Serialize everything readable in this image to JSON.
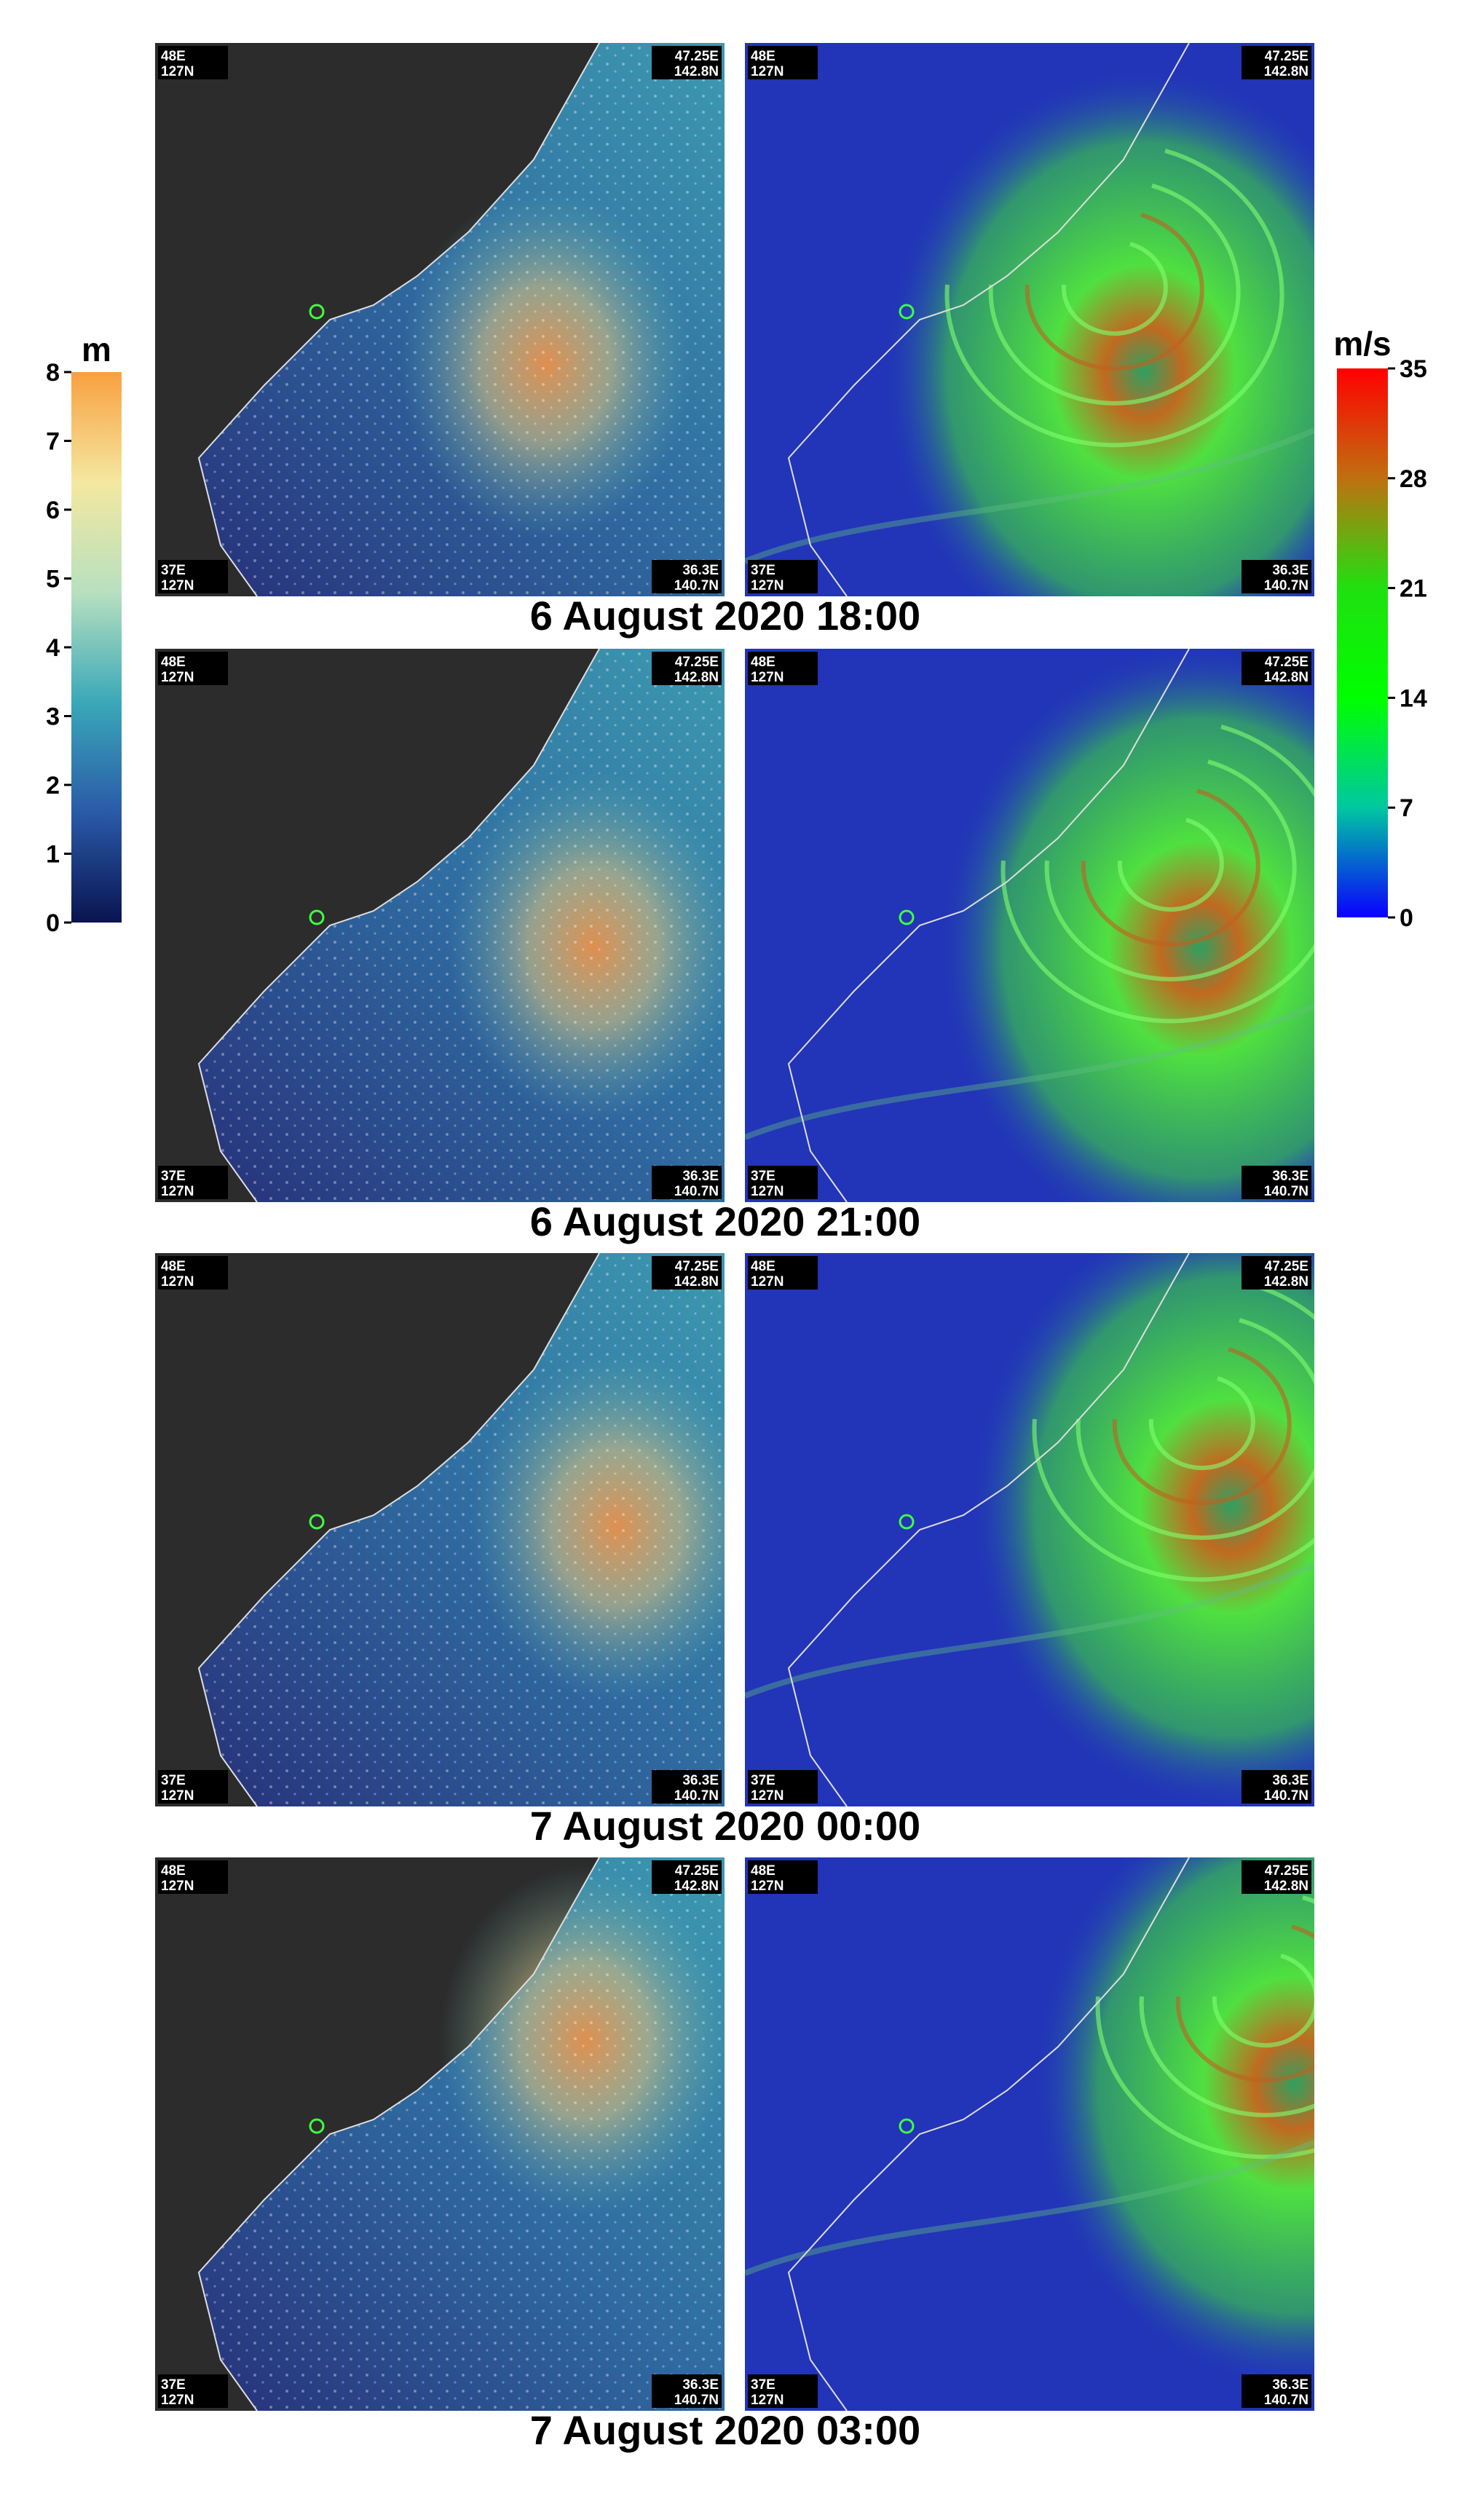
{
  "legend_left": {
    "unit": "m",
    "range": [
      0,
      8
    ],
    "ticks": [
      0,
      1,
      2,
      3,
      4,
      5,
      6,
      7,
      8
    ],
    "colors": [
      "#0a1450",
      "#2a5aa8",
      "#3aa8b8",
      "#b8e0c0",
      "#f4e8a0",
      "#f8a040"
    ]
  },
  "legend_right": {
    "unit": "m/s",
    "range": [
      0,
      35
    ],
    "ticks": [
      0,
      7,
      14,
      21,
      28,
      35
    ],
    "colors": [
      "#0a00ff",
      "#00c8a0",
      "#00ff00",
      "#20e010",
      "#c07010",
      "#ff0000"
    ]
  },
  "corners": [
    {
      "lon": "48E",
      "lat": "127N"
    },
    {
      "lon": "47.25E",
      "lat": "142.8N"
    },
    {
      "lon": "37E",
      "lat": "127N"
    },
    {
      "lon": "36.3E",
      "lat": "140.7N"
    }
  ],
  "panels": [
    {
      "time": "6 August 2020 18:00"
    },
    {
      "time": "6 August 2020 21:00"
    },
    {
      "time": "7 August 2020 00:00"
    },
    {
      "time": "7 August 2020 03:00"
    }
  ]
}
